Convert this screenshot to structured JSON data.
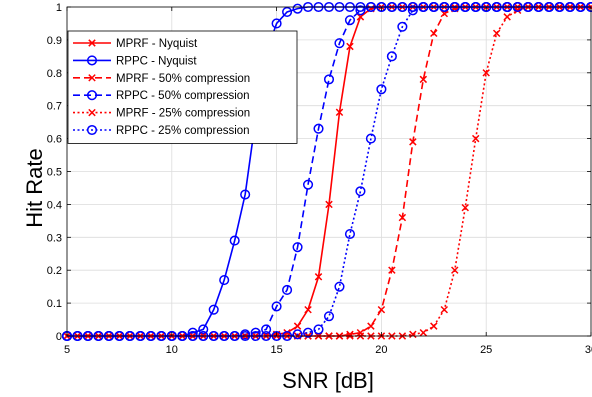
{
  "chart_data": {
    "type": "line",
    "xlabel": "SNR [dB]",
    "ylabel": "Hit Rate",
    "xlim": [
      5,
      30
    ],
    "ylim": [
      0,
      1
    ],
    "xticks": [
      "5",
      "10",
      "15",
      "20",
      "25",
      "30"
    ],
    "yticks": [
      "0",
      "0.1",
      "0.2",
      "0.3",
      "0.4",
      "0.5",
      "0.6",
      "0.7",
      "0.8",
      "0.9",
      "1"
    ],
    "grid": true,
    "legend_position": "top-left",
    "x": [
      5.0,
      5.5,
      6.0,
      6.5,
      7.0,
      7.5,
      8.0,
      8.5,
      9.0,
      9.5,
      10.0,
      10.5,
      11.0,
      11.5,
      12.0,
      12.5,
      13.0,
      13.5,
      14.0,
      14.5,
      15.0,
      15.5,
      16.0,
      16.5,
      17.0,
      17.5,
      18.0,
      18.5,
      19.0,
      19.5,
      20.0,
      20.5,
      21.0,
      21.5,
      22.0,
      22.5,
      23.0,
      23.5,
      24.0,
      24.5,
      25.0,
      25.5,
      26.0,
      26.5,
      27.0,
      27.5,
      28.0,
      28.5,
      29.0,
      29.5,
      30.0
    ],
    "series": [
      {
        "name": "MPRF - Nyquist",
        "color": "#ff0000",
        "line_style": "solid",
        "marker": "x",
        "values": [
          0,
          0,
          0,
          0,
          0,
          0,
          0,
          0,
          0,
          0,
          0,
          0,
          0,
          0,
          0,
          0,
          0,
          0,
          0,
          0,
          0.005,
          0.01,
          0.03,
          0.08,
          0.18,
          0.4,
          0.68,
          0.88,
          0.97,
          0.995,
          1,
          1,
          1,
          1,
          1,
          1,
          1,
          1,
          1,
          1,
          1,
          1,
          1,
          1,
          1,
          1,
          1,
          1,
          1,
          1,
          1
        ]
      },
      {
        "name": "RPPC - Nyquist",
        "color": "#0000ff",
        "line_style": "solid",
        "marker": "o",
        "values": [
          0,
          0,
          0,
          0,
          0,
          0,
          0,
          0,
          0,
          0,
          0,
          0,
          0.01,
          0.02,
          0.08,
          0.17,
          0.29,
          0.43,
          0.66,
          0.86,
          0.95,
          0.985,
          0.995,
          1,
          1,
          1,
          1,
          1,
          1,
          1,
          1,
          1,
          1,
          1,
          1,
          1,
          1,
          1,
          1,
          1,
          1,
          1,
          1,
          1,
          1,
          1,
          1,
          1,
          1,
          1,
          1
        ]
      },
      {
        "name": "MPRF - 50% compression",
        "color": "#ff0000",
        "line_style": "dashed",
        "marker": "x",
        "values": [
          0,
          0,
          0,
          0,
          0,
          0,
          0,
          0,
          0,
          0,
          0,
          0,
          0,
          0,
          0,
          0,
          0,
          0,
          0,
          0,
          0,
          0,
          0,
          0,
          0,
          0,
          0,
          0.005,
          0.01,
          0.03,
          0.08,
          0.2,
          0.36,
          0.59,
          0.78,
          0.92,
          0.98,
          0.995,
          1,
          1,
          1,
          1,
          1,
          1,
          1,
          1,
          1,
          1,
          1,
          1,
          1
        ]
      },
      {
        "name": "RPPC - 50% compression",
        "color": "#0000ff",
        "line_style": "dashed",
        "marker": "o",
        "values": [
          0,
          0,
          0,
          0,
          0,
          0,
          0,
          0,
          0,
          0,
          0,
          0,
          0,
          0,
          0,
          0,
          0,
          0.005,
          0.01,
          0.02,
          0.09,
          0.14,
          0.27,
          0.46,
          0.63,
          0.78,
          0.89,
          0.96,
          0.99,
          1,
          1,
          1,
          1,
          1,
          1,
          1,
          1,
          1,
          1,
          1,
          1,
          1,
          1,
          1,
          1,
          1,
          1,
          1,
          1,
          1,
          1
        ]
      },
      {
        "name": "MPRF - 25% compression",
        "color": "#ff0000",
        "line_style": "dotted",
        "marker": "x",
        "values": [
          0,
          0,
          0,
          0,
          0,
          0,
          0,
          0,
          0,
          0,
          0,
          0,
          0,
          0,
          0,
          0,
          0,
          0,
          0,
          0,
          0,
          0,
          0,
          0,
          0,
          0,
          0,
          0,
          0,
          0,
          0,
          0,
          0,
          0.005,
          0.01,
          0.03,
          0.08,
          0.2,
          0.39,
          0.6,
          0.8,
          0.92,
          0.97,
          0.99,
          1,
          1,
          1,
          1,
          1,
          1,
          1
        ]
      },
      {
        "name": "RPPC - 25% compression",
        "color": "#0000ff",
        "line_style": "dotted",
        "marker": "o",
        "values": [
          0,
          0,
          0,
          0,
          0,
          0,
          0,
          0,
          0,
          0,
          0,
          0,
          0,
          0,
          0,
          0,
          0,
          0,
          0,
          0,
          0,
          0,
          0.005,
          0.01,
          0.02,
          0.06,
          0.15,
          0.31,
          0.44,
          0.6,
          0.75,
          0.85,
          0.94,
          0.99,
          1,
          1,
          1,
          1,
          1,
          1,
          1,
          1,
          1,
          1,
          1,
          1,
          1,
          1,
          1,
          1,
          1
        ]
      }
    ]
  }
}
